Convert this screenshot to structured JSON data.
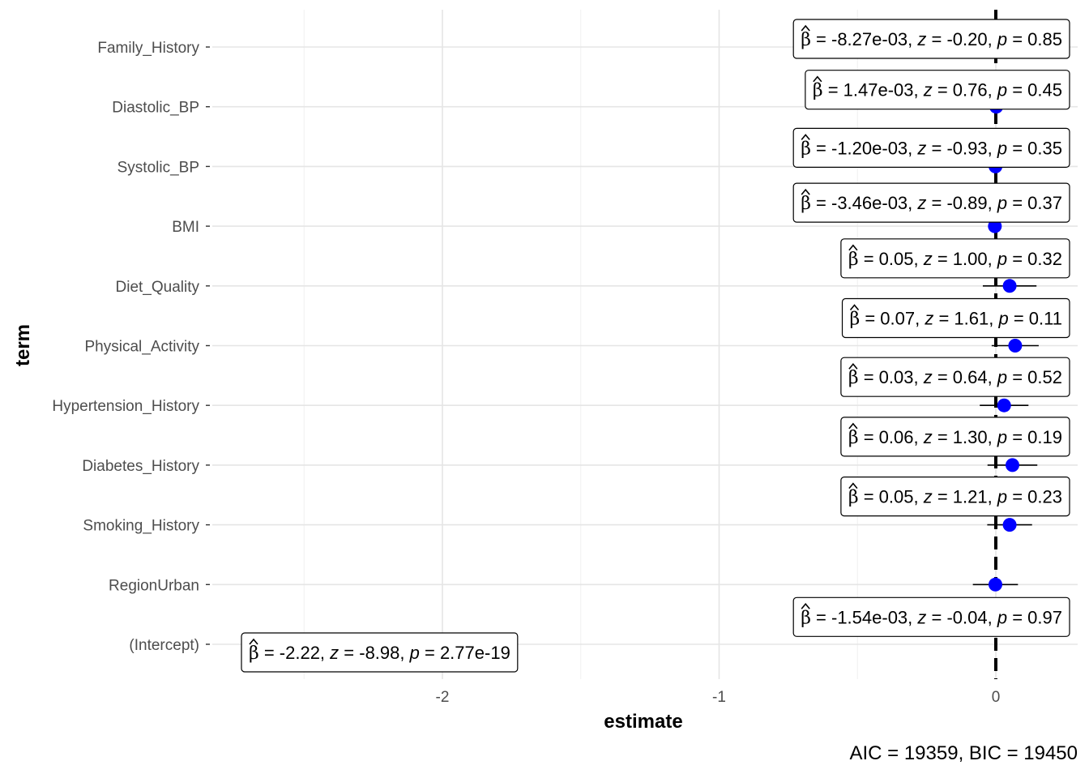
{
  "chart_data": {
    "type": "scatter",
    "subtype": "coefficient-plot",
    "xlabel": "estimate",
    "ylabel": "term",
    "xlim": [
      -2.75,
      0.3
    ],
    "x_ticks": [
      -2,
      -1,
      0
    ],
    "x_tick_labels": [
      "-2",
      "-1",
      "0"
    ],
    "reference_line_x": 0,
    "grid": true,
    "point_color": "#0000ff",
    "caption": "AIC = 19359, BIC = 19450",
    "terms": [
      {
        "term": "Family_History",
        "estimate": -0.00827,
        "ci": [
          -0.088,
          0.071
        ],
        "label": {
          "beta": "-8.27e-03",
          "z": "-0.20",
          "p": "0.85"
        }
      },
      {
        "term": "Diastolic_BP",
        "estimate": 0.00147,
        "ci": [
          -0.0023,
          0.0053
        ],
        "label": {
          "beta": "1.47e-03",
          "z": "0.76",
          "p": "0.45"
        }
      },
      {
        "term": "Systolic_BP",
        "estimate": -0.0012,
        "ci": [
          -0.0037,
          0.0013
        ],
        "label": {
          "beta": "-1.20e-03",
          "z": "-0.93",
          "p": "0.35"
        }
      },
      {
        "term": "BMI",
        "estimate": -0.00346,
        "ci": [
          -0.011,
          0.004
        ],
        "label": {
          "beta": "-3.46e-03",
          "z": "-0.89",
          "p": "0.37"
        }
      },
      {
        "term": "Diet_Quality",
        "estimate": 0.05,
        "ci": [
          -0.047,
          0.147
        ],
        "label": {
          "beta": "0.05",
          "z": "1.00",
          "p": "0.32"
        }
      },
      {
        "term": "Physical_Activity",
        "estimate": 0.07,
        "ci": [
          -0.015,
          0.155
        ],
        "label": {
          "beta": "0.07",
          "z": "1.61",
          "p": "0.11"
        }
      },
      {
        "term": "Hypertension_History",
        "estimate": 0.03,
        "ci": [
          -0.058,
          0.118
        ],
        "label": {
          "beta": "0.03",
          "z": "0.64",
          "p": "0.52"
        }
      },
      {
        "term": "Diabetes_History",
        "estimate": 0.06,
        "ci": [
          -0.03,
          0.15
        ],
        "label": {
          "beta": "0.06",
          "z": "1.30",
          "p": "0.19"
        }
      },
      {
        "term": "Smoking_History",
        "estimate": 0.05,
        "ci": [
          -0.031,
          0.131
        ],
        "label": {
          "beta": "0.05",
          "z": "1.21",
          "p": "0.23"
        }
      },
      {
        "term": "RegionUrban",
        "estimate": -0.00154,
        "ci": [
          -0.083,
          0.08
        ],
        "label": {
          "beta": "-1.54e-03",
          "z": "-0.04",
          "p": "0.97"
        }
      },
      {
        "term": "(Intercept)",
        "estimate": -2.22,
        "ci": [
          -2.705,
          -1.735
        ],
        "label": {
          "beta": "-2.22",
          "z": "-8.98",
          "p": "2.77e-19"
        }
      }
    ]
  }
}
